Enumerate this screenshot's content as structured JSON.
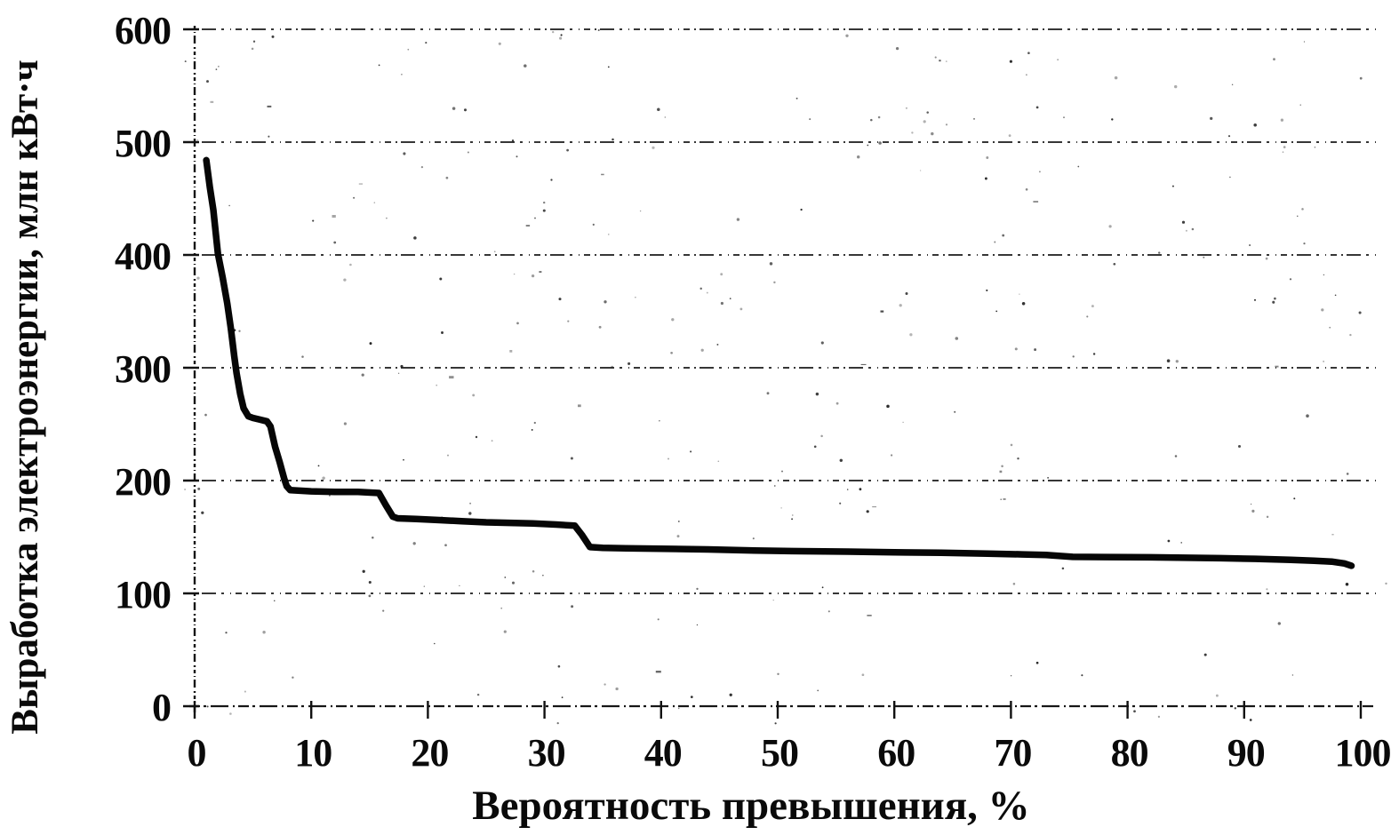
{
  "figure": {
    "kind": "scanned line chart, black and white, no legend, no title"
  },
  "chart_data": {
    "type": "line",
    "title": "",
    "xlabel": "Вероятность превышения, %",
    "ylabel": "Выработка электроэнергии, млн кВт·ч",
    "xlim": [
      0,
      100
    ],
    "ylim": [
      0,
      600
    ],
    "x_ticks": [
      0,
      10,
      20,
      30,
      40,
      50,
      60,
      70,
      80,
      90,
      100
    ],
    "x_tick_labels": [
      "0",
      "10",
      "20",
      "30",
      "40",
      "50",
      "60",
      "70",
      "80",
      "90",
      "100"
    ],
    "y_ticks": [
      0,
      100,
      200,
      300,
      400,
      500,
      600
    ],
    "y_tick_labels": [
      "0",
      "100",
      "200",
      "300",
      "400",
      "500",
      "600"
    ],
    "grid": "horizontal dashed gridlines at every 100",
    "legend_position": "none",
    "line_color": "#060606",
    "background_color": "#ffffff",
    "series": [
      {
        "points": [
          [
            1.0,
            484
          ],
          [
            1.3,
            460
          ],
          [
            1.6,
            440
          ],
          [
            2.0,
            401
          ],
          [
            2.4,
            380
          ],
          [
            2.8,
            357
          ],
          [
            3.1,
            335
          ],
          [
            3.4,
            310
          ],
          [
            3.6,
            295
          ],
          [
            3.9,
            277
          ],
          [
            4.2,
            264
          ],
          [
            4.6,
            257
          ],
          [
            5.0,
            255.5
          ],
          [
            5.6,
            254
          ],
          [
            6.2,
            252.5
          ],
          [
            6.5,
            248
          ],
          [
            6.9,
            230
          ],
          [
            7.3,
            216
          ],
          [
            7.7,
            201
          ],
          [
            7.9,
            195
          ],
          [
            8.2,
            191.5
          ],
          [
            10.0,
            190.5
          ],
          [
            12.0,
            190
          ],
          [
            14.0,
            190
          ],
          [
            15.8,
            189
          ],
          [
            16.4,
            178
          ],
          [
            17.0,
            168
          ],
          [
            17.4,
            166.5
          ],
          [
            19.0,
            166
          ],
          [
            21.0,
            165
          ],
          [
            22.9,
            164
          ],
          [
            25.0,
            163
          ],
          [
            27.0,
            162.5
          ],
          [
            29.0,
            162
          ],
          [
            31.0,
            161
          ],
          [
            32.6,
            160
          ],
          [
            33.2,
            152
          ],
          [
            33.9,
            141
          ],
          [
            35.0,
            140.3
          ],
          [
            37.0,
            140
          ],
          [
            40.0,
            139.5
          ],
          [
            44.0,
            139
          ],
          [
            48.0,
            138
          ],
          [
            52.0,
            137.4
          ],
          [
            56.0,
            137
          ],
          [
            60.0,
            136.4
          ],
          [
            64.0,
            136
          ],
          [
            68.0,
            135.3
          ],
          [
            71.0,
            134.6
          ],
          [
            73.0,
            134
          ],
          [
            75.3,
            132.4
          ],
          [
            78.0,
            132.2
          ],
          [
            82.0,
            132
          ],
          [
            85.0,
            131.6
          ],
          [
            88.0,
            131.2
          ],
          [
            91.0,
            130.6
          ],
          [
            94.0,
            129.8
          ],
          [
            96.0,
            129
          ],
          [
            97.5,
            128.2
          ],
          [
            98.6,
            126.5
          ],
          [
            99.2,
            124.5
          ]
        ]
      }
    ]
  }
}
